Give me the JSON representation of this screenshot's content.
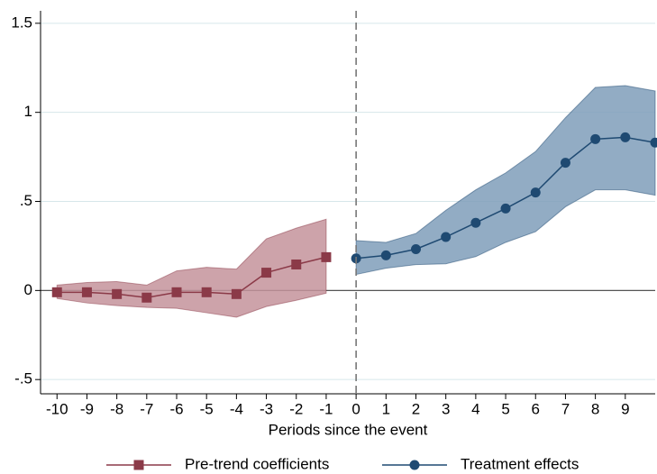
{
  "chart_data": {
    "type": "line",
    "xlabel": "Periods since the event",
    "xlim": [
      -10.55,
      10
    ],
    "ylim": [
      -0.58,
      1.57
    ],
    "xticks": [
      -10,
      -9,
      -8,
      -7,
      -6,
      -5,
      -4,
      -3,
      -2,
      -1,
      0,
      1,
      2,
      3,
      4,
      5,
      6,
      7,
      8,
      9
    ],
    "yticks": [
      {
        "value": -0.5,
        "label": "-.5"
      },
      0,
      {
        "value": 0.5,
        "label": ".5"
      },
      1,
      1.5
    ],
    "grid": true,
    "vline": 0,
    "hline": 0,
    "legend": "bottom",
    "series": [
      {
        "name": "Pre-trend coefficients",
        "color": "#8b3a48",
        "band_color": "#c4939b",
        "marker": "square",
        "x": [
          -10,
          -9,
          -8,
          -7,
          -6,
          -5,
          -4,
          -3,
          -2,
          -1
        ],
        "values": [
          -0.01,
          -0.01,
          -0.02,
          -0.04,
          -0.01,
          -0.01,
          -0.02,
          0.1,
          0.146,
          0.187
        ],
        "lower": [
          -0.045,
          -0.07,
          -0.085,
          -0.095,
          -0.1,
          -0.125,
          -0.15,
          -0.09,
          -0.055,
          -0.015
        ],
        "upper": [
          0.03,
          0.045,
          0.05,
          0.03,
          0.11,
          0.13,
          0.12,
          0.29,
          0.35,
          0.4
        ]
      },
      {
        "name": "Treatment effects",
        "color": "#1f4a72",
        "band_color": "#7f9dba",
        "marker": "circle",
        "x": [
          0,
          1,
          2,
          3,
          4,
          5,
          6,
          7,
          8,
          9,
          10
        ],
        "values": [
          0.18,
          0.197,
          0.232,
          0.3,
          0.38,
          0.46,
          0.55,
          0.717,
          0.85,
          0.86,
          0.83
        ],
        "lower": [
          0.09,
          0.125,
          0.145,
          0.15,
          0.19,
          0.27,
          0.33,
          0.47,
          0.565,
          0.565,
          0.535
        ],
        "upper": [
          0.28,
          0.27,
          0.32,
          0.45,
          0.565,
          0.66,
          0.78,
          0.97,
          1.14,
          1.15,
          1.12
        ]
      }
    ]
  }
}
